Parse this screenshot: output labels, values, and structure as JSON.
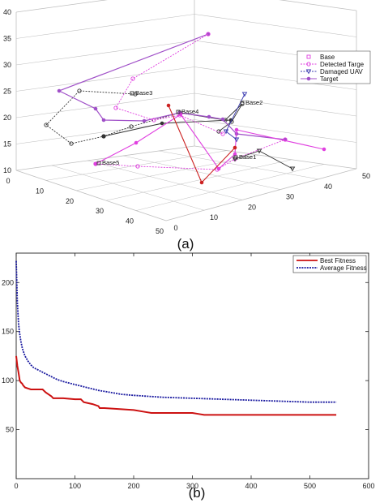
{
  "chart_data": [
    {
      "type": "line3d",
      "caption": "(a)",
      "z_ticks": [
        "10",
        "15",
        "20",
        "25",
        "30",
        "35",
        "40"
      ],
      "x_ticks": [
        "0",
        "10",
        "20",
        "30",
        "40",
        "50"
      ],
      "y_ticks": [
        "0",
        "10",
        "20",
        "30",
        "40",
        "50"
      ],
      "legend": [
        "Base",
        "Detected Targe",
        "Damaged UAV",
        "Target"
      ],
      "base_labels": [
        "Base1",
        "Base2",
        "Base3",
        "Base4",
        "Base5"
      ],
      "colors": {
        "black": "#333333",
        "pink": "#e040e0",
        "purple": "#a050c8",
        "red": "#cc2222",
        "blue": "#3a3ab0",
        "grid": "#bfbfbf"
      }
    },
    {
      "type": "line",
      "caption": "(b)",
      "xlim": [
        0,
        600
      ],
      "ylim": [
        0,
        230
      ],
      "x_ticks": [
        "0",
        "100",
        "200",
        "300",
        "400",
        "500",
        "600"
      ],
      "y_ticks": [
        "50",
        "100",
        "150",
        "200"
      ],
      "series": [
        {
          "name": "Best Fitness",
          "color": "#cc1111",
          "x": [
            0,
            2,
            4,
            6,
            8,
            10,
            12,
            15,
            20,
            25,
            30,
            45,
            50,
            55,
            60,
            63,
            80,
            100,
            110,
            115,
            130,
            140,
            142,
            150,
            200,
            220,
            230,
            300,
            310,
            320,
            340,
            400,
            500,
            545
          ],
          "y": [
            125,
            115,
            108,
            100,
            98,
            97,
            95,
            93,
            92,
            91,
            91,
            91,
            88,
            86,
            84,
            82,
            82,
            81,
            81,
            78,
            76,
            74,
            72,
            72,
            70,
            68,
            67,
            67,
            66,
            65,
            65,
            65,
            65,
            65
          ]
        },
        {
          "name": "Average Fitness",
          "color": "#1a1aa0",
          "x": [
            0,
            2,
            4,
            6,
            8,
            10,
            12,
            15,
            20,
            25,
            30,
            40,
            50,
            60,
            70,
            80,
            100,
            120,
            140,
            160,
            180,
            200,
            250,
            300,
            350,
            400,
            450,
            500,
            545
          ],
          "y": [
            222,
            180,
            158,
            147,
            140,
            134,
            130,
            125,
            120,
            116,
            113,
            110,
            107,
            104,
            101,
            99,
            96,
            93,
            90,
            88,
            86,
            85,
            83,
            82,
            81,
            80,
            79,
            78,
            78
          ]
        }
      ]
    }
  ]
}
